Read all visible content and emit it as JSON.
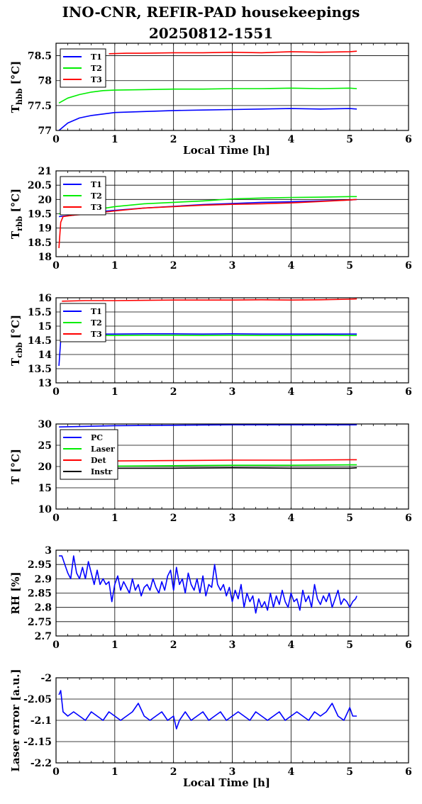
{
  "title_lines": [
    "INO-CNR, REFIR-PAD housekeepings",
    "20250812-1551"
  ],
  "chart_data": [
    {
      "type": "line",
      "ylabel": "T",
      "ylabel_sub": "hbb",
      "ylabel_unit": " [°C]",
      "xlabel": "Local Time [h]",
      "xlim": [
        0,
        6
      ],
      "ylim": [
        77,
        78.75
      ],
      "xticks": [
        0,
        1,
        2,
        3,
        4,
        5,
        6
      ],
      "yticks": [
        77,
        77.5,
        78,
        78.5
      ],
      "ytick_labels": [
        "77",
        "77.5",
        "78",
        "78.5"
      ],
      "grid": "y-major",
      "legend": "top-left",
      "series": [
        {
          "name": "T1",
          "color": "#0000ff",
          "x": [
            0.05,
            0.2,
            0.4,
            0.6,
            0.8,
            1,
            1.5,
            2,
            2.5,
            3,
            3.5,
            4,
            4.5,
            5,
            5.12
          ],
          "y": [
            77,
            77.15,
            77.25,
            77.3,
            77.33,
            77.36,
            77.38,
            77.4,
            77.41,
            77.42,
            77.43,
            77.44,
            77.43,
            77.44,
            77.43
          ]
        },
        {
          "name": "T2",
          "color": "#00ee00",
          "x": [
            0.05,
            0.2,
            0.4,
            0.6,
            0.8,
            1,
            1.5,
            2,
            2.5,
            3,
            3.5,
            4,
            4.5,
            5,
            5.12
          ],
          "y": [
            77.55,
            77.65,
            77.72,
            77.77,
            77.8,
            77.81,
            77.82,
            77.83,
            77.83,
            77.84,
            77.84,
            77.85,
            77.84,
            77.85,
            77.84
          ]
        },
        {
          "name": "T3",
          "color": "#ff0000",
          "x": [
            0.9,
            1.2,
            1.5,
            2,
            2.5,
            3,
            3.5,
            4,
            4.5,
            5,
            5.12
          ],
          "y": [
            78.54,
            78.55,
            78.55,
            78.56,
            78.56,
            78.57,
            78.56,
            78.58,
            78.57,
            78.58,
            78.59
          ]
        }
      ]
    },
    {
      "type": "line",
      "ylabel": "T",
      "ylabel_sub": "rbb",
      "ylabel_unit": " [°C]",
      "xlabel": "",
      "xlim": [
        0,
        6
      ],
      "ylim": [
        18,
        21
      ],
      "xticks": [
        0,
        1,
        2,
        3,
        4,
        5,
        6
      ],
      "yticks": [
        18,
        18.5,
        19,
        19.5,
        20,
        20.5,
        21
      ],
      "ytick_labels": [
        "18",
        "18.5",
        "19",
        "19.5",
        "20",
        "20.5",
        "21"
      ],
      "grid": "y-major",
      "legend": "top-left",
      "series": [
        {
          "name": "T1",
          "color": "#0000ff",
          "x": [
            0.05,
            0.3,
            0.6,
            1,
            1.5,
            2,
            2.5,
            3,
            3.5,
            4,
            4.5,
            5,
            5.12
          ],
          "y": [
            19.4,
            19.45,
            19.55,
            19.62,
            19.7,
            19.76,
            19.82,
            19.86,
            19.9,
            19.92,
            19.95,
            19.98,
            20
          ]
        },
        {
          "name": "T2",
          "color": "#00ee00",
          "x": [
            0.05,
            0.3,
            0.6,
            1,
            1.5,
            2,
            2.5,
            3,
            3.5,
            4,
            4.5,
            5,
            5.12
          ],
          "y": [
            19.5,
            19.55,
            19.62,
            19.75,
            19.85,
            19.9,
            19.95,
            20.02,
            20.05,
            20.07,
            20.08,
            20.1,
            20.1
          ]
        },
        {
          "name": "T3",
          "color": "#ff0000",
          "x": [
            0.05,
            0.08,
            0.12,
            0.3,
            0.6,
            1,
            1.5,
            2,
            2.5,
            3,
            3.5,
            4,
            4.5,
            5,
            5.12
          ],
          "y": [
            18.3,
            19.2,
            19.4,
            19.45,
            19.5,
            19.6,
            19.7,
            19.75,
            19.8,
            19.83,
            19.85,
            19.88,
            19.93,
            19.98,
            20
          ]
        }
      ]
    },
    {
      "type": "line",
      "ylabel": "T",
      "ylabel_sub": "cbb",
      "ylabel_unit": " [°C]",
      "xlabel": "",
      "xlim": [
        0,
        6
      ],
      "ylim": [
        13,
        16
      ],
      "xticks": [
        0,
        1,
        2,
        3,
        4,
        5,
        6
      ],
      "yticks": [
        13,
        13.5,
        14,
        14.5,
        15,
        15.5,
        16
      ],
      "ytick_labels": [
        "13",
        "13.5",
        "14",
        "14.5",
        "15",
        "15.5",
        "16"
      ],
      "grid": "y-major",
      "legend": "top-left",
      "series": [
        {
          "name": "T1",
          "color": "#0000ff",
          "x": [
            0.05,
            0.08,
            0.12,
            0.3,
            0.6,
            1,
            1.5,
            2,
            2.5,
            3,
            3.5,
            4,
            4.5,
            5,
            5.12
          ],
          "y": [
            13.6,
            14.5,
            14.65,
            14.7,
            14.72,
            14.72,
            14.73,
            14.73,
            14.72,
            14.73,
            14.72,
            14.72,
            14.72,
            14.72,
            14.72
          ]
        },
        {
          "name": "T2",
          "color": "#00ee00",
          "x": [
            0.1,
            0.3,
            0.6,
            1,
            1.5,
            2,
            2.5,
            3,
            3.5,
            4,
            4.5,
            5,
            5.12
          ],
          "y": [
            14.65,
            14.68,
            14.68,
            14.67,
            14.68,
            14.68,
            14.67,
            14.68,
            14.67,
            14.67,
            14.68,
            14.67,
            14.67
          ]
        },
        {
          "name": "T3",
          "color": "#ff0000",
          "x": [
            0.1,
            0.5,
            1,
            1.5,
            2,
            2.5,
            3,
            3.5,
            4,
            4.5,
            5,
            5.12
          ],
          "y": [
            15.88,
            15.9,
            15.9,
            15.91,
            15.92,
            15.92,
            15.92,
            15.93,
            15.92,
            15.93,
            15.95,
            15.96
          ]
        }
      ]
    },
    {
      "type": "line",
      "ylabel": "T",
      "ylabel_sub": "",
      "ylabel_unit": " [°C]",
      "xlabel": "",
      "xlim": [
        0,
        6
      ],
      "ylim": [
        10,
        30
      ],
      "xticks": [
        0,
        1,
        2,
        3,
        4,
        5,
        6
      ],
      "yticks": [
        10,
        15,
        20,
        25,
        30
      ],
      "ytick_labels": [
        "10",
        "15",
        "20",
        "25",
        "30"
      ],
      "grid": "y-major",
      "legend": "top-left",
      "series": [
        {
          "name": "PC",
          "color": "#0000ff",
          "x": [
            0.05,
            1,
            2,
            3,
            4,
            5,
            5.12
          ],
          "y": [
            29.3,
            29.6,
            29.7,
            29.8,
            29.8,
            29.8,
            29.8
          ]
        },
        {
          "name": "Laser",
          "color": "#00ee00",
          "x": [
            0.9,
            2,
            3,
            4,
            5,
            5.12
          ],
          "y": [
            20.1,
            20.2,
            20.3,
            20.3,
            20.4,
            20.4
          ]
        },
        {
          "name": "Det",
          "color": "#ff0000",
          "x": [
            0.9,
            2,
            3,
            4,
            5,
            5.12
          ],
          "y": [
            21.3,
            21.4,
            21.5,
            21.5,
            21.6,
            21.6
          ]
        },
        {
          "name": "Instr",
          "color": "#000000",
          "x": [
            0.9,
            2,
            3,
            4,
            5,
            5.12
          ],
          "y": [
            19.6,
            19.6,
            19.7,
            19.6,
            19.6,
            19.7
          ]
        }
      ]
    },
    {
      "type": "line",
      "ylabel": "RH",
      "ylabel_sub": "",
      "ylabel_unit": " [%]",
      "xlabel": "",
      "xlim": [
        0,
        6
      ],
      "ylim": [
        2.7,
        3
      ],
      "xticks": [
        0,
        1,
        2,
        3,
        4,
        5,
        6
      ],
      "yticks": [
        2.7,
        2.75,
        2.8,
        2.85,
        2.9,
        2.95,
        3
      ],
      "ytick_labels": [
        "2.7",
        "2.75",
        "2.8",
        "2.85",
        "2.9",
        "2.95",
        "3"
      ],
      "grid": "y-major",
      "legend": "none",
      "series": [
        {
          "name": "",
          "color": "#0000ff",
          "x": [
            0.05,
            0.1,
            0.15,
            0.2,
            0.25,
            0.3,
            0.35,
            0.4,
            0.45,
            0.5,
            0.55,
            0.6,
            0.65,
            0.7,
            0.75,
            0.8,
            0.85,
            0.9,
            0.95,
            1.0,
            1.05,
            1.1,
            1.15,
            1.2,
            1.25,
            1.3,
            1.35,
            1.4,
            1.45,
            1.5,
            1.55,
            1.6,
            1.65,
            1.7,
            1.75,
            1.8,
            1.85,
            1.9,
            1.95,
            2.0,
            2.05,
            2.1,
            2.15,
            2.2,
            2.25,
            2.3,
            2.35,
            2.4,
            2.45,
            2.5,
            2.55,
            2.6,
            2.65,
            2.7,
            2.75,
            2.8,
            2.85,
            2.9,
            2.95,
            3.0,
            3.05,
            3.1,
            3.15,
            3.2,
            3.25,
            3.3,
            3.35,
            3.4,
            3.45,
            3.5,
            3.55,
            3.6,
            3.65,
            3.7,
            3.75,
            3.8,
            3.85,
            3.9,
            3.95,
            4.0,
            4.05,
            4.1,
            4.15,
            4.2,
            4.25,
            4.3,
            4.35,
            4.4,
            4.45,
            4.5,
            4.55,
            4.6,
            4.65,
            4.7,
            4.75,
            4.8,
            4.85,
            4.9,
            4.95,
            5.0,
            5.05,
            5.1,
            5.12
          ],
          "y": [
            2.98,
            2.98,
            2.95,
            2.92,
            2.9,
            2.98,
            2.92,
            2.9,
            2.94,
            2.9,
            2.96,
            2.92,
            2.88,
            2.93,
            2.88,
            2.9,
            2.88,
            2.89,
            2.82,
            2.88,
            2.91,
            2.86,
            2.89,
            2.87,
            2.85,
            2.9,
            2.86,
            2.88,
            2.84,
            2.87,
            2.88,
            2.86,
            2.9,
            2.87,
            2.85,
            2.89,
            2.86,
            2.91,
            2.93,
            2.86,
            2.94,
            2.88,
            2.9,
            2.85,
            2.92,
            2.88,
            2.86,
            2.9,
            2.85,
            2.91,
            2.84,
            2.88,
            2.87,
            2.95,
            2.88,
            2.86,
            2.88,
            2.84,
            2.87,
            2.82,
            2.86,
            2.83,
            2.88,
            2.8,
            2.85,
            2.82,
            2.84,
            2.78,
            2.83,
            2.8,
            2.82,
            2.79,
            2.85,
            2.8,
            2.84,
            2.81,
            2.86,
            2.82,
            2.8,
            2.85,
            2.82,
            2.83,
            2.79,
            2.86,
            2.82,
            2.84,
            2.8,
            2.88,
            2.83,
            2.81,
            2.84,
            2.82,
            2.85,
            2.8,
            2.83,
            2.86,
            2.81,
            2.83,
            2.82,
            2.8,
            2.82,
            2.83,
            2.84
          ]
        }
      ]
    },
    {
      "type": "line",
      "ylabel": "Laser error",
      "ylabel_sub": "",
      "ylabel_unit": " [a.u.]",
      "xlabel": "Local Time [h]",
      "xlim": [
        0,
        6
      ],
      "ylim": [
        -2.2,
        -2
      ],
      "xticks": [
        0,
        1,
        2,
        3,
        4,
        5,
        6
      ],
      "yticks": [
        -2.2,
        -2.15,
        -2.1,
        -2.05,
        -2
      ],
      "ytick_labels": [
        "-2.2",
        "-2.15",
        "-2.1",
        "-2.05",
        "-2"
      ],
      "grid": "y-major",
      "legend": "none",
      "series": [
        {
          "name": "",
          "color": "#0000ff",
          "x": [
            0.05,
            0.08,
            0.12,
            0.2,
            0.3,
            0.4,
            0.5,
            0.6,
            0.7,
            0.8,
            0.9,
            1.0,
            1.1,
            1.2,
            1.3,
            1.4,
            1.5,
            1.6,
            1.7,
            1.8,
            1.9,
            2.0,
            2.05,
            2.1,
            2.2,
            2.3,
            2.4,
            2.5,
            2.6,
            2.7,
            2.8,
            2.9,
            3.0,
            3.1,
            3.2,
            3.3,
            3.4,
            3.5,
            3.6,
            3.7,
            3.8,
            3.9,
            4.0,
            4.1,
            4.2,
            4.3,
            4.4,
            4.5,
            4.6,
            4.7,
            4.8,
            4.9,
            5.0,
            5.05,
            5.12
          ],
          "y": [
            -2.04,
            -2.03,
            -2.08,
            -2.09,
            -2.08,
            -2.09,
            -2.1,
            -2.08,
            -2.09,
            -2.1,
            -2.08,
            -2.09,
            -2.1,
            -2.09,
            -2.08,
            -2.06,
            -2.09,
            -2.1,
            -2.09,
            -2.08,
            -2.1,
            -2.09,
            -2.12,
            -2.1,
            -2.08,
            -2.1,
            -2.09,
            -2.08,
            -2.1,
            -2.09,
            -2.08,
            -2.1,
            -2.09,
            -2.08,
            -2.09,
            -2.1,
            -2.08,
            -2.09,
            -2.1,
            -2.09,
            -2.08,
            -2.1,
            -2.09,
            -2.08,
            -2.09,
            -2.1,
            -2.08,
            -2.09,
            -2.08,
            -2.06,
            -2.09,
            -2.1,
            -2.07,
            -2.09,
            -2.09
          ]
        }
      ]
    }
  ]
}
